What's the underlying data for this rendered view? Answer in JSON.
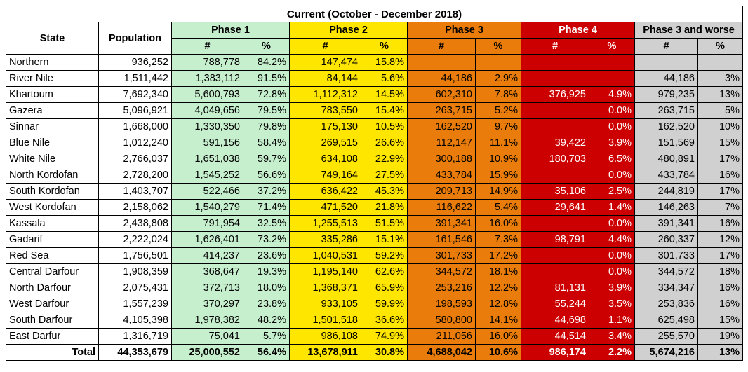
{
  "title": "Current (October - December 2018)",
  "headers": {
    "state": "State",
    "population": "Population",
    "phase1": "Phase 1",
    "phase2": "Phase 2",
    "phase3": "Phase 3",
    "phase4": "Phase 4",
    "phase3worse": "Phase 3 and worse",
    "num": "#",
    "pct": "%"
  },
  "colors": {
    "phase1": "#c6efce",
    "phase2": "#ffe600",
    "phase3": "#e97c0a",
    "phase4": "#cc0000",
    "phase3worse": "#d0d0d0"
  },
  "rows": [
    {
      "state": "Northern",
      "pop": "936,252",
      "p1n": "788,778",
      "p1p": "84.2%",
      "p2n": "147,474",
      "p2p": "15.8%",
      "p3n": "",
      "p3p": "",
      "p4n": "",
      "p4p": "",
      "p3wn": "",
      "p3wp": ""
    },
    {
      "state": "River Nile",
      "pop": "1,511,442",
      "p1n": "1,383,112",
      "p1p": "91.5%",
      "p2n": "84,144",
      "p2p": "5.6%",
      "p3n": "44,186",
      "p3p": "2.9%",
      "p4n": "",
      "p4p": "",
      "p3wn": "44,186",
      "p3wp": "3%"
    },
    {
      "state": "Khartoum",
      "pop": "7,692,340",
      "p1n": "5,600,793",
      "p1p": "72.8%",
      "p2n": "1,112,312",
      "p2p": "14.5%",
      "p3n": "602,310",
      "p3p": "7.8%",
      "p4n": "376,925",
      "p4p": "4.9%",
      "p3wn": "979,235",
      "p3wp": "13%"
    },
    {
      "state": "Gazera",
      "pop": "5,096,921",
      "p1n": "4,049,656",
      "p1p": "79.5%",
      "p2n": "783,550",
      "p2p": "15.4%",
      "p3n": "263,715",
      "p3p": "5.2%",
      "p4n": "",
      "p4p": "0.0%",
      "p3wn": "263,715",
      "p3wp": "5%"
    },
    {
      "state": "Sinnar",
      "pop": "1,668,000",
      "p1n": "1,330,350",
      "p1p": "79.8%",
      "p2n": "175,130",
      "p2p": "10.5%",
      "p3n": "162,520",
      "p3p": "9.7%",
      "p4n": "",
      "p4p": "0.0%",
      "p3wn": "162,520",
      "p3wp": "10%"
    },
    {
      "state": "Blue Nile",
      "pop": "1,012,240",
      "p1n": "591,156",
      "p1p": "58.4%",
      "p2n": "269,515",
      "p2p": "26.6%",
      "p3n": "112,147",
      "p3p": "11.1%",
      "p4n": "39,422",
      "p4p": "3.9%",
      "p3wn": "151,569",
      "p3wp": "15%"
    },
    {
      "state": "White Nile",
      "pop": "2,766,037",
      "p1n": "1,651,038",
      "p1p": "59.7%",
      "p2n": "634,108",
      "p2p": "22.9%",
      "p3n": "300,188",
      "p3p": "10.9%",
      "p4n": "180,703",
      "p4p": "6.5%",
      "p3wn": "480,891",
      "p3wp": "17%"
    },
    {
      "state": "North Kordofan",
      "pop": "2,728,200",
      "p1n": "1,545,252",
      "p1p": "56.6%",
      "p2n": "749,164",
      "p2p": "27.5%",
      "p3n": "433,784",
      "p3p": "15.9%",
      "p4n": "",
      "p4p": "0.0%",
      "p3wn": "433,784",
      "p3wp": "16%"
    },
    {
      "state": "South Kordofan",
      "pop": "1,403,707",
      "p1n": "522,466",
      "p1p": "37.2%",
      "p2n": "636,422",
      "p2p": "45.3%",
      "p3n": "209,713",
      "p3p": "14.9%",
      "p4n": "35,106",
      "p4p": "2.5%",
      "p3wn": "244,819",
      "p3wp": "17%"
    },
    {
      "state": "West Kordofan",
      "pop": "2,158,062",
      "p1n": "1,540,279",
      "p1p": "71.4%",
      "p2n": "471,520",
      "p2p": "21.8%",
      "p3n": "116,622",
      "p3p": "5.4%",
      "p4n": "29,641",
      "p4p": "1.4%",
      "p3wn": "146,263",
      "p3wp": "7%"
    },
    {
      "state": "Kassala",
      "pop": "2,438,808",
      "p1n": "791,954",
      "p1p": "32.5%",
      "p2n": "1,255,513",
      "p2p": "51.5%",
      "p3n": "391,341",
      "p3p": "16.0%",
      "p4n": "",
      "p4p": "0.0%",
      "p3wn": "391,341",
      "p3wp": "16%"
    },
    {
      "state": "Gadarif",
      "pop": "2,222,024",
      "p1n": "1,626,401",
      "p1p": "73.2%",
      "p2n": "335,286",
      "p2p": "15.1%",
      "p3n": "161,546",
      "p3p": "7.3%",
      "p4n": "98,791",
      "p4p": "4.4%",
      "p3wn": "260,337",
      "p3wp": "12%"
    },
    {
      "state": "Red Sea",
      "pop": "1,756,501",
      "p1n": "414,237",
      "p1p": "23.6%",
      "p2n": "1,040,531",
      "p2p": "59.2%",
      "p3n": "301,733",
      "p3p": "17.2%",
      "p4n": "",
      "p4p": "0.0%",
      "p3wn": "301,733",
      "p3wp": "17%"
    },
    {
      "state": "Central Darfour",
      "pop": "1,908,359",
      "p1n": "368,647",
      "p1p": "19.3%",
      "p2n": "1,195,140",
      "p2p": "62.6%",
      "p3n": "344,572",
      "p3p": "18.1%",
      "p4n": "",
      "p4p": "0.0%",
      "p3wn": "344,572",
      "p3wp": "18%"
    },
    {
      "state": "North Darfour",
      "pop": "2,075,431",
      "p1n": "372,713",
      "p1p": "18.0%",
      "p2n": "1,368,371",
      "p2p": "65.9%",
      "p3n": "253,216",
      "p3p": "12.2%",
      "p4n": "81,131",
      "p4p": "3.9%",
      "p3wn": "334,347",
      "p3wp": "16%"
    },
    {
      "state": "West Darfour",
      "pop": "1,557,239",
      "p1n": "370,297",
      "p1p": "23.8%",
      "p2n": "933,105",
      "p2p": "59.9%",
      "p3n": "198,593",
      "p3p": "12.8%",
      "p4n": "55,244",
      "p4p": "3.5%",
      "p3wn": "253,836",
      "p3wp": "16%"
    },
    {
      "state": "South Darfour",
      "pop": "4,105,398",
      "p1n": "1,978,382",
      "p1p": "48.2%",
      "p2n": "1,501,518",
      "p2p": "36.6%",
      "p3n": "580,800",
      "p3p": "14.1%",
      "p4n": "44,698",
      "p4p": "1.1%",
      "p3wn": "625,498",
      "p3wp": "15%"
    },
    {
      "state": "East Darfur",
      "pop": "1,316,719",
      "p1n": "75,041",
      "p1p": "5.7%",
      "p2n": "986,108",
      "p2p": "74.9%",
      "p3n": "211,056",
      "p3p": "16.0%",
      "p4n": "44,514",
      "p4p": "3.4%",
      "p3wn": "255,570",
      "p3wp": "19%"
    }
  ],
  "total": {
    "state": "Total",
    "pop": "44,353,679",
    "p1n": "25,000,552",
    "p1p": "56.4%",
    "p2n": "13,678,911",
    "p2p": "30.8%",
    "p3n": "4,688,042",
    "p3p": "10.6%",
    "p4n": "986,174",
    "p4p": "2.2%",
    "p3wn": "5,674,216",
    "p3wp": "13%"
  }
}
